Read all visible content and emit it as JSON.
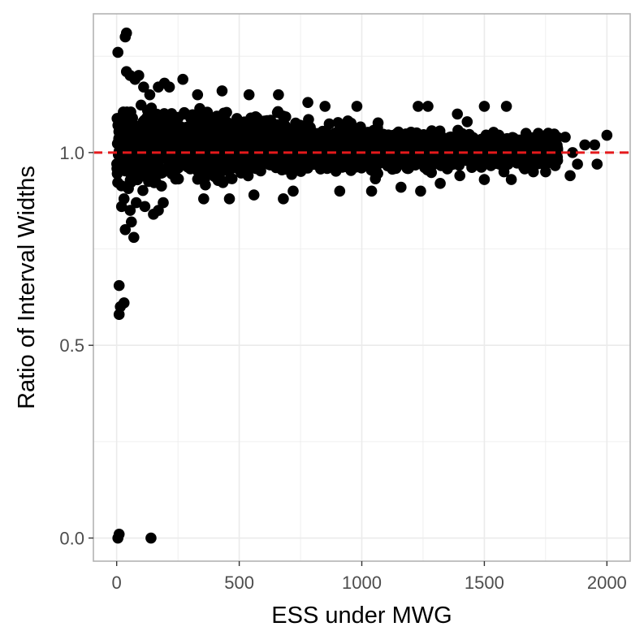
{
  "chart_data": {
    "type": "scatter",
    "xlabel": "ESS under MWG",
    "ylabel": "Ratio of Interval Widths",
    "xlim": [
      -95,
      2095
    ],
    "ylim": [
      -0.06,
      1.36
    ],
    "x_ticks": [
      0,
      500,
      1000,
      1500,
      2000
    ],
    "x_tick_labels": [
      "0",
      "500",
      "1000",
      "1500",
      "2000"
    ],
    "y_ticks": [
      0.0,
      0.5,
      1.0
    ],
    "y_tick_labels": [
      "0.0",
      "0.5",
      "1.0"
    ],
    "grid": true,
    "legend": "none",
    "reference_line": {
      "y": 1.0,
      "style": "dashed"
    },
    "colors": {
      "points": "#000000",
      "reference_line": "#e41a1c",
      "grid": "#ebebeb",
      "panel_border": "#b3b3b3"
    },
    "series": [
      {
        "points": [
          [
            5,
            0.0
          ],
          [
            10,
            0.01
          ],
          [
            140,
            0.0
          ],
          [
            10,
            0.58
          ],
          [
            15,
            0.6
          ],
          [
            10,
            0.655
          ],
          [
            30,
            0.61
          ],
          [
            35,
            0.8
          ],
          [
            70,
            0.78
          ],
          [
            5,
            1.26
          ],
          [
            35,
            1.3
          ],
          [
            40,
            1.31
          ],
          [
            40,
            1.21
          ],
          [
            55,
            1.2
          ],
          [
            75,
            1.19
          ],
          [
            90,
            1.2
          ],
          [
            110,
            1.17
          ],
          [
            135,
            1.15
          ],
          [
            170,
            1.17
          ],
          [
            195,
            1.18
          ],
          [
            215,
            1.17
          ],
          [
            270,
            1.19
          ],
          [
            330,
            1.15
          ],
          [
            430,
            1.16
          ],
          [
            540,
            1.15
          ],
          [
            660,
            1.15
          ],
          [
            780,
            1.13
          ],
          [
            850,
            1.12
          ],
          [
            980,
            1.12
          ],
          [
            1230,
            1.12
          ],
          [
            1270,
            1.12
          ],
          [
            1390,
            1.1
          ],
          [
            1500,
            1.12
          ],
          [
            1590,
            1.12
          ],
          [
            1430,
            1.08
          ],
          [
            20,
            0.86
          ],
          [
            30,
            0.88
          ],
          [
            55,
            0.85
          ],
          [
            60,
            0.82
          ],
          [
            80,
            0.87
          ],
          [
            115,
            0.86
          ],
          [
            150,
            0.84
          ],
          [
            170,
            0.85
          ],
          [
            190,
            0.87
          ],
          [
            355,
            0.88
          ],
          [
            460,
            0.88
          ],
          [
            560,
            0.89
          ],
          [
            680,
            0.88
          ],
          [
            720,
            0.9
          ],
          [
            910,
            0.9
          ],
          [
            1040,
            0.9
          ],
          [
            1160,
            0.91
          ],
          [
            1240,
            0.9
          ],
          [
            1320,
            0.92
          ],
          [
            1400,
            0.94
          ],
          [
            1500,
            0.93
          ],
          [
            1580,
            0.95
          ],
          [
            1610,
            0.93
          ],
          [
            1700,
            0.95
          ],
          [
            1750,
            0.95
          ],
          [
            1850,
            0.94
          ],
          [
            1880,
            0.97
          ],
          [
            1960,
            0.97
          ],
          [
            1860,
            1.0
          ],
          [
            1910,
            1.02
          ],
          [
            1950,
            1.02
          ],
          [
            2000,
            1.045
          ],
          [
            1830,
            1.04
          ],
          [
            1780,
            1.03
          ],
          [
            1720,
            1.05
          ],
          [
            1670,
            1.05
          ]
        ],
        "dense_band": [
          {
            "x": [
              0,
              200
            ],
            "y": [
              0.88,
              1.15
            ]
          },
          {
            "x": [
              200,
              500
            ],
            "y": [
              0.9,
              1.13
            ]
          },
          {
            "x": [
              500,
              800
            ],
            "y": [
              0.91,
              1.12
            ]
          },
          {
            "x": [
              800,
              1100
            ],
            "y": [
              0.92,
              1.1
            ]
          },
          {
            "x": [
              1100,
              1400
            ],
            "y": [
              0.94,
              1.07
            ]
          },
          {
            "x": [
              1400,
              1800
            ],
            "y": [
              0.95,
              1.06
            ]
          }
        ]
      }
    ]
  }
}
